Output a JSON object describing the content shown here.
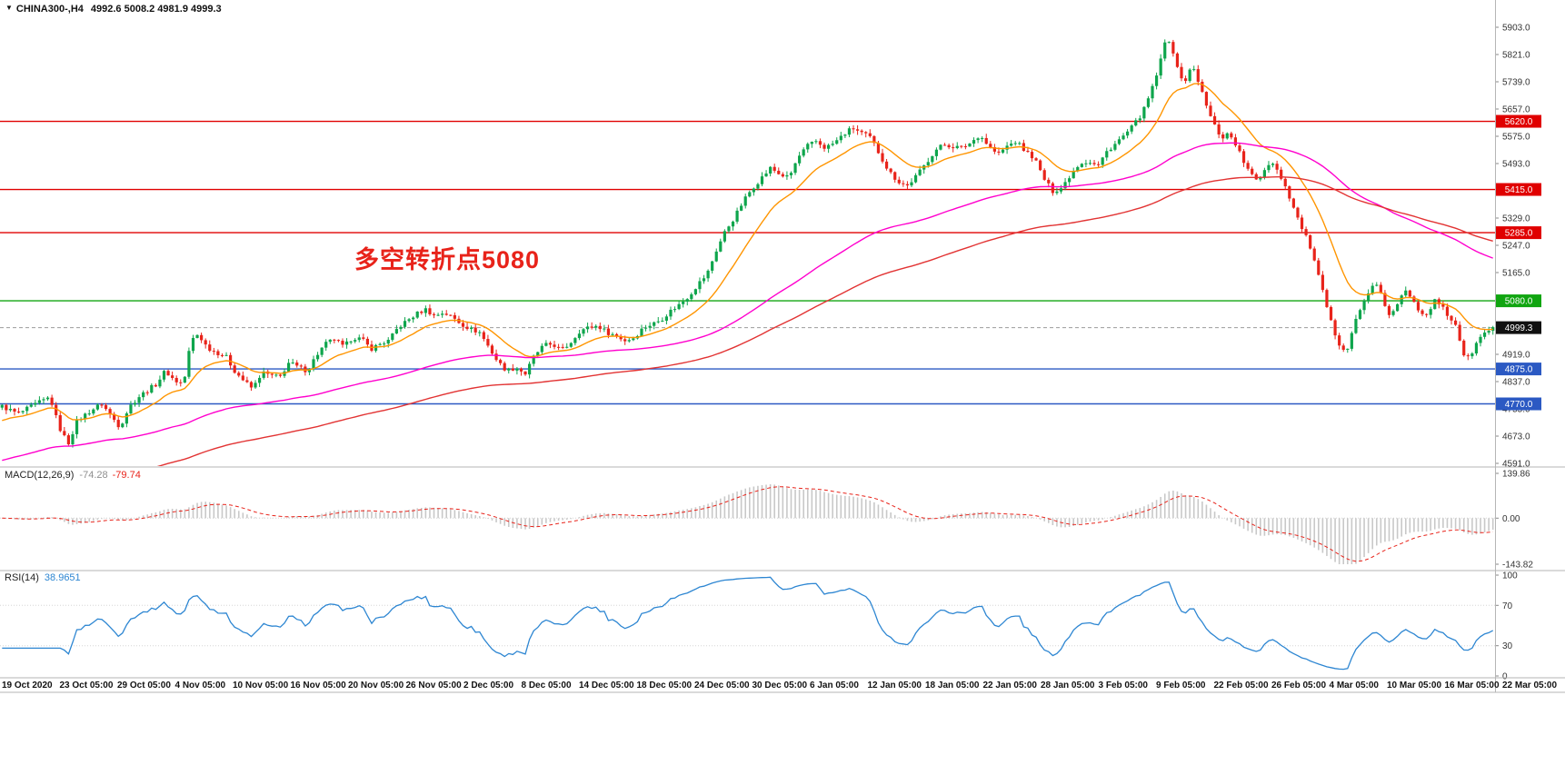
{
  "header": {
    "dropdown_icon": "▼",
    "symbol": "CHINA300-,H4",
    "ohlc": "4992.6 5008.2 4981.9 4999.3"
  },
  "annotation": {
    "text": "多空转折点5080",
    "color": "#e8231a"
  },
  "colors": {
    "candle_up": "#0ea54c",
    "candle_down": "#e8231a",
    "ma_fast": "#ff9500",
    "ma_mid": "#ff00cd",
    "ma_slow": "#e23333",
    "resistance": "#e00000",
    "pivot_green": "#10a510",
    "support_blue": "#2b59c3",
    "current_price_line": "#9c9c9c",
    "current_price_tag": "#111111",
    "macd_hist": "#c8c8c8",
    "macd_signal": "#e8231a",
    "rsi_line": "#2d86d2"
  },
  "hlines": [
    {
      "value": 5620.0,
      "label": "5620.0",
      "color": "#e00000",
      "style": "solid"
    },
    {
      "value": 5415.0,
      "label": "5415.0",
      "color": "#e00000",
      "style": "solid"
    },
    {
      "value": 5285.0,
      "label": "5285.0",
      "color": "#e00000",
      "style": "solid"
    },
    {
      "value": 5080.0,
      "label": "5080.0",
      "color": "#10a510",
      "style": "solid"
    },
    {
      "value": 4999.3,
      "label": "4999.3",
      "color": "#111111",
      "style": "current"
    },
    {
      "value": 4875.0,
      "label": "4875.0",
      "color": "#2b59c3",
      "style": "solid"
    },
    {
      "value": 4770.0,
      "label": "4770.0",
      "color": "#2b59c3",
      "style": "solid"
    }
  ],
  "price_axis": {
    "labels": [
      "5903.0",
      "5821.0",
      "5739.0",
      "5657.0",
      "5575.0",
      "5493.0",
      "5411.0",
      "5329.0",
      "5247.0",
      "5165.0",
      "5083.0",
      "5001.0",
      "4919.0",
      "4837.0",
      "4755.0",
      "4673.0",
      "4591.0"
    ]
  },
  "x_axis": {
    "labels": [
      "19 Oct 2020",
      "23 Oct 05:00",
      "29 Oct 05:00",
      "4 Nov 05:00",
      "10 Nov 05:00",
      "16 Nov 05:00",
      "20 Nov 05:00",
      "26 Nov 05:00",
      "2 Dec 05:00",
      "8 Dec 05:00",
      "14 Dec 05:00",
      "18 Dec 05:00",
      "24 Dec 05:00",
      "30 Dec 05:00",
      "6 Jan 05:00",
      "12 Jan 05:00",
      "18 Jan 05:00",
      "22 Jan 05:00",
      "28 Jan 05:00",
      "3 Feb 05:00",
      "9 Feb 05:00",
      "22 Feb 05:00",
      "26 Feb 05:00",
      "4 Mar 05:00",
      "10 Mar 05:00",
      "16 Mar 05:00",
      "22 Mar 05:00"
    ]
  },
  "macd": {
    "label": "MACD(12,26,9)",
    "main_value": "-74.28",
    "signal_value": "-79.74",
    "axis_labels": [
      "139.86",
      "0.00",
      "-143.82"
    ]
  },
  "rsi": {
    "label": "RSI(14)",
    "value": "38.9651",
    "axis_labels": [
      "100",
      "70",
      "30",
      "0"
    ],
    "levels": [
      70,
      30
    ]
  },
  "chart_data": {
    "type": "candlestick",
    "symbol": "CHINA300-",
    "timeframe": "H4",
    "ylim": [
      4591,
      5903
    ],
    "x_range": [
      "19 Oct 2020",
      "22 Mar 05:00"
    ],
    "candle_count": 360,
    "price_keyframes": [
      [
        0,
        4765
      ],
      [
        20,
        4740
      ],
      [
        40,
        4770
      ],
      [
        55,
        4790
      ],
      [
        65,
        4700
      ],
      [
        75,
        4650
      ],
      [
        85,
        4720
      ],
      [
        100,
        4750
      ],
      [
        112,
        4770
      ],
      [
        122,
        4735
      ],
      [
        132,
        4700
      ],
      [
        142,
        4760
      ],
      [
        152,
        4790
      ],
      [
        162,
        4810
      ],
      [
        172,
        4830
      ],
      [
        182,
        4870
      ],
      [
        192,
        4840
      ],
      [
        202,
        4830
      ],
      [
        210,
        4960
      ],
      [
        218,
        4980
      ],
      [
        228,
        4940
      ],
      [
        238,
        4925
      ],
      [
        248,
        4915
      ],
      [
        258,
        4870
      ],
      [
        268,
        4840
      ],
      [
        278,
        4815
      ],
      [
        288,
        4865
      ],
      [
        298,
        4855
      ],
      [
        308,
        4850
      ],
      [
        318,
        4895
      ],
      [
        328,
        4880
      ],
      [
        338,
        4870
      ],
      [
        348,
        4915
      ],
      [
        358,
        4950
      ],
      [
        368,
        4965
      ],
      [
        378,
        4940
      ],
      [
        388,
        4970
      ],
      [
        398,
        4965
      ],
      [
        408,
        4935
      ],
      [
        418,
        4950
      ],
      [
        428,
        4960
      ],
      [
        438,
        5000
      ],
      [
        448,
        5020
      ],
      [
        458,
        5040
      ],
      [
        468,
        5055
      ],
      [
        478,
        5035
      ],
      [
        488,
        5045
      ],
      [
        498,
        5030
      ],
      [
        508,
        5010
      ],
      [
        518,
        4995
      ],
      [
        528,
        4985
      ],
      [
        538,
        4940
      ],
      [
        548,
        4895
      ],
      [
        558,
        4870
      ],
      [
        568,
        4880
      ],
      [
        578,
        4860
      ],
      [
        588,
        4915
      ],
      [
        598,
        4945
      ],
      [
        608,
        4950
      ],
      [
        618,
        4930
      ],
      [
        628,
        4955
      ],
      [
        638,
        4990
      ],
      [
        648,
        5000
      ],
      [
        658,
        5005
      ],
      [
        668,
        4985
      ],
      [
        678,
        4975
      ],
      [
        688,
        4960
      ],
      [
        698,
        4970
      ],
      [
        708,
        5000
      ],
      [
        718,
        5010
      ],
      [
        728,
        5025
      ],
      [
        738,
        5050
      ],
      [
        748,
        5070
      ],
      [
        758,
        5095
      ],
      [
        768,
        5130
      ],
      [
        778,
        5160
      ],
      [
        788,
        5230
      ],
      [
        798,
        5290
      ],
      [
        808,
        5330
      ],
      [
        818,
        5380
      ],
      [
        828,
        5420
      ],
      [
        838,
        5450
      ],
      [
        848,
        5480
      ],
      [
        858,
        5460
      ],
      [
        868,
        5450
      ],
      [
        878,
        5510
      ],
      [
        888,
        5545
      ],
      [
        898,
        5560
      ],
      [
        908,
        5540
      ],
      [
        918,
        5555
      ],
      [
        928,
        5580
      ],
      [
        938,
        5600
      ],
      [
        948,
        5585
      ],
      [
        958,
        5570
      ],
      [
        968,
        5520
      ],
      [
        978,
        5470
      ],
      [
        988,
        5440
      ],
      [
        998,
        5425
      ],
      [
        1008,
        5455
      ],
      [
        1018,
        5490
      ],
      [
        1028,
        5530
      ],
      [
        1038,
        5550
      ],
      [
        1048,
        5545
      ],
      [
        1058,
        5540
      ],
      [
        1068,
        5555
      ],
      [
        1078,
        5580
      ],
      [
        1088,
        5545
      ],
      [
        1098,
        5520
      ],
      [
        1108,
        5545
      ],
      [
        1118,
        5560
      ],
      [
        1128,
        5530
      ],
      [
        1138,
        5510
      ],
      [
        1148,
        5450
      ],
      [
        1158,
        5410
      ],
      [
        1168,
        5420
      ],
      [
        1178,
        5460
      ],
      [
        1188,
        5495
      ],
      [
        1198,
        5500
      ],
      [
        1208,
        5485
      ],
      [
        1218,
        5530
      ],
      [
        1228,
        5555
      ],
      [
        1238,
        5580
      ],
      [
        1248,
        5610
      ],
      [
        1258,
        5650
      ],
      [
        1268,
        5720
      ],
      [
        1276,
        5790
      ],
      [
        1284,
        5880
      ],
      [
        1290,
        5840
      ],
      [
        1296,
        5770
      ],
      [
        1304,
        5740
      ],
      [
        1312,
        5790
      ],
      [
        1320,
        5730
      ],
      [
        1328,
        5660
      ],
      [
        1336,
        5610
      ],
      [
        1344,
        5570
      ],
      [
        1352,
        5585
      ],
      [
        1360,
        5550
      ],
      [
        1368,
        5500
      ],
      [
        1376,
        5460
      ],
      [
        1384,
        5440
      ],
      [
        1392,
        5480
      ],
      [
        1400,
        5500
      ],
      [
        1410,
        5450
      ],
      [
        1418,
        5400
      ],
      [
        1426,
        5340
      ],
      [
        1434,
        5290
      ],
      [
        1442,
        5240
      ],
      [
        1450,
        5160
      ],
      [
        1458,
        5080
      ],
      [
        1466,
        5000
      ],
      [
        1474,
        4950
      ],
      [
        1482,
        4930
      ],
      [
        1490,
        5010
      ],
      [
        1498,
        5060
      ],
      [
        1506,
        5110
      ],
      [
        1514,
        5130
      ],
      [
        1522,
        5080
      ],
      [
        1530,
        5030
      ],
      [
        1538,
        5070
      ],
      [
        1546,
        5110
      ],
      [
        1554,
        5090
      ],
      [
        1562,
        5050
      ],
      [
        1570,
        5040
      ],
      [
        1578,
        5080
      ],
      [
        1586,
        5065
      ],
      [
        1594,
        5030
      ],
      [
        1602,
        5010
      ],
      [
        1610,
        4920
      ],
      [
        1616,
        4905
      ],
      [
        1626,
        4960
      ],
      [
        1634,
        4985
      ],
      [
        1645,
        4999
      ]
    ],
    "last_ohlc": {
      "open": 4992.6,
      "high": 5008.2,
      "low": 4981.9,
      "close": 4999.3
    },
    "moving_averages": [
      {
        "name": "fast",
        "color": "#ff9500",
        "period": 16,
        "init": 4720
      },
      {
        "name": "mid",
        "color": "#ff00cd",
        "period": 90,
        "init": 4600
      },
      {
        "name": "slow",
        "color": "#e23333",
        "period": 150,
        "init": 4470
      }
    ],
    "macd_panel": {
      "ylim": [
        -143.82,
        139.86
      ],
      "params": [
        12,
        26,
        9
      ],
      "last_main": -74.28,
      "last_signal": -79.74
    },
    "rsi_panel": {
      "ylim": [
        0,
        100
      ],
      "period": 14,
      "last": 38.9651,
      "levels": [
        70,
        30
      ]
    }
  }
}
